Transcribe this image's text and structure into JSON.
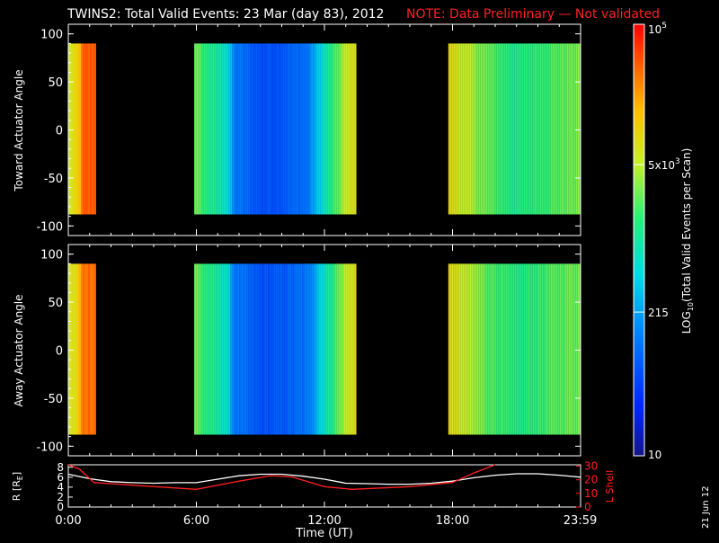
{
  "header": {
    "title": "TWINS2: Total Valid Events: 23 Mar (day  83), 2012",
    "note": "NOTE: Data Preliminary — Not validated",
    "note_color": "#ff2020"
  },
  "footer": {
    "generated": "21 Jun 12"
  },
  "chart_data": [
    {
      "type": "heatmap",
      "panel": "top",
      "ylabel": "Toward Actuator Angle",
      "ylim": [
        -110,
        110
      ],
      "yticks": [
        "100",
        "50",
        "0",
        "-50",
        "-100"
      ],
      "xlim_hours": [
        0,
        24
      ],
      "data_extent_y": [
        -88,
        90
      ],
      "data_intervals_hours": [
        [
          0.0,
          1.3
        ],
        [
          5.9,
          13.5
        ],
        [
          17.8,
          24.0
        ]
      ],
      "value_scale": "log10",
      "value_range": [
        10,
        100000
      ],
      "column_profile": [
        {
          "t": 0.0,
          "v": 6000
        },
        {
          "t": 0.4,
          "v": 9000
        },
        {
          "t": 0.7,
          "v": 40000
        },
        {
          "t": 1.2,
          "v": 45000
        },
        {
          "t": 5.9,
          "v": 3000
        },
        {
          "t": 6.4,
          "v": 1500
        },
        {
          "t": 7.4,
          "v": 700
        },
        {
          "t": 7.8,
          "v": 120
        },
        {
          "t": 9.0,
          "v": 60
        },
        {
          "t": 10.0,
          "v": 70
        },
        {
          "t": 11.2,
          "v": 110
        },
        {
          "t": 11.8,
          "v": 450
        },
        {
          "t": 12.4,
          "v": 1500
        },
        {
          "t": 13.0,
          "v": 5000
        },
        {
          "t": 13.5,
          "v": 9000
        },
        {
          "t": 17.8,
          "v": 9000
        },
        {
          "t": 18.6,
          "v": 5000
        },
        {
          "t": 19.6,
          "v": 2500
        },
        {
          "t": 21.0,
          "v": 1200
        },
        {
          "t": 22.5,
          "v": 2000
        },
        {
          "t": 24.0,
          "v": 3000
        }
      ]
    },
    {
      "type": "heatmap",
      "panel": "middle",
      "ylabel": "Away Actuator Angle",
      "ylim": [
        -110,
        110
      ],
      "yticks": [
        "100",
        "50",
        "0",
        "-50",
        "-100"
      ],
      "xlim_hours": [
        0,
        24
      ],
      "data_extent_y": [
        -88,
        90
      ],
      "data_intervals_hours": [
        [
          0.0,
          1.3
        ],
        [
          5.9,
          13.5
        ],
        [
          17.8,
          24.0
        ]
      ],
      "value_scale": "log10",
      "value_range": [
        10,
        100000
      ],
      "column_profile": [
        {
          "t": 0.0,
          "v": 6000
        },
        {
          "t": 0.4,
          "v": 9000
        },
        {
          "t": 0.7,
          "v": 35000
        },
        {
          "t": 1.2,
          "v": 40000
        },
        {
          "t": 5.9,
          "v": 3000
        },
        {
          "t": 6.4,
          "v": 1500
        },
        {
          "t": 7.4,
          "v": 700
        },
        {
          "t": 7.8,
          "v": 120
        },
        {
          "t": 9.0,
          "v": 60
        },
        {
          "t": 10.0,
          "v": 70
        },
        {
          "t": 11.2,
          "v": 110
        },
        {
          "t": 11.8,
          "v": 450
        },
        {
          "t": 12.4,
          "v": 1500
        },
        {
          "t": 13.0,
          "v": 5000
        },
        {
          "t": 13.5,
          "v": 9000
        },
        {
          "t": 17.8,
          "v": 9000
        },
        {
          "t": 18.6,
          "v": 5000
        },
        {
          "t": 19.6,
          "v": 2500
        },
        {
          "t": 21.0,
          "v": 1200
        },
        {
          "t": 22.5,
          "v": 2000
        },
        {
          "t": 24.0,
          "v": 3000
        }
      ]
    },
    {
      "type": "line",
      "panel": "bottom",
      "ylabel": "R [R_E]",
      "ylabel_parts": {
        "base": "R [R",
        "sub": "E",
        "close": "]"
      },
      "ylim": [
        0,
        8.5
      ],
      "yticks": [
        "8",
        "6",
        "4",
        "2",
        "0"
      ],
      "ylabel_right": "L Shell",
      "ylim_right": [
        0,
        31
      ],
      "yticks_right": [
        "30",
        "20",
        "10",
        "0"
      ],
      "xlabel": "Time (UT)",
      "xticks": [
        {
          "t": 0,
          "label": "0:00"
        },
        {
          "t": 6,
          "label": "6:00"
        },
        {
          "t": 12,
          "label": "12:00"
        },
        {
          "t": 18,
          "label": "18:00"
        },
        {
          "t": 23.98,
          "label": "23:59"
        }
      ],
      "series": [
        {
          "axis": "left",
          "color": "#ffffff",
          "points": [
            [
              0,
              6.6
            ],
            [
              1,
              5.7
            ],
            [
              2,
              5.1
            ],
            [
              3,
              4.9
            ],
            [
              4,
              4.8
            ],
            [
              5,
              4.9
            ],
            [
              6,
              4.9
            ],
            [
              7,
              5.6
            ],
            [
              8,
              6.3
            ],
            [
              9,
              6.6
            ],
            [
              10,
              6.6
            ],
            [
              11,
              6.2
            ],
            [
              12,
              5.6
            ],
            [
              13,
              4.8
            ],
            [
              14,
              4.7
            ],
            [
              15,
              4.6
            ],
            [
              16,
              4.6
            ],
            [
              17,
              4.8
            ],
            [
              18,
              5.2
            ],
            [
              19,
              5.9
            ],
            [
              20,
              6.4
            ],
            [
              21,
              6.7
            ],
            [
              22,
              6.7
            ],
            [
              23,
              6.4
            ],
            [
              24,
              6.0
            ]
          ]
        },
        {
          "axis": "right",
          "color": "#ff2020",
          "points": [
            [
              0,
              31
            ],
            [
              0.5,
              28
            ],
            [
              1.2,
              18
            ],
            [
              3,
              16
            ],
            [
              6,
              13
            ],
            [
              8,
              19
            ],
            [
              9.5,
              23
            ],
            [
              10.5,
              22
            ],
            [
              12,
              15
            ],
            [
              13.3,
              13
            ],
            [
              16,
              15
            ],
            [
              18,
              18
            ],
            [
              19,
              25
            ],
            [
              20,
              31
            ]
          ]
        }
      ]
    },
    {
      "type": "colorbar",
      "label": "LOG10(Total Valid Events per Scan)",
      "label_parts": {
        "pre": "LOG",
        "sub": "10",
        "post": "(Total Valid Events per Scan)"
      },
      "scale": "log10",
      "range": [
        10,
        100000
      ],
      "ticks": [
        {
          "value": 100000,
          "label_base": "10",
          "label_sup": "5"
        },
        {
          "value": 5000,
          "label_base": "5x10",
          "label_sup": "3"
        },
        {
          "value": 215,
          "label_base": "215",
          "label_sup": ""
        },
        {
          "value": 10,
          "label_base": "10",
          "label_sup": ""
        }
      ]
    }
  ]
}
